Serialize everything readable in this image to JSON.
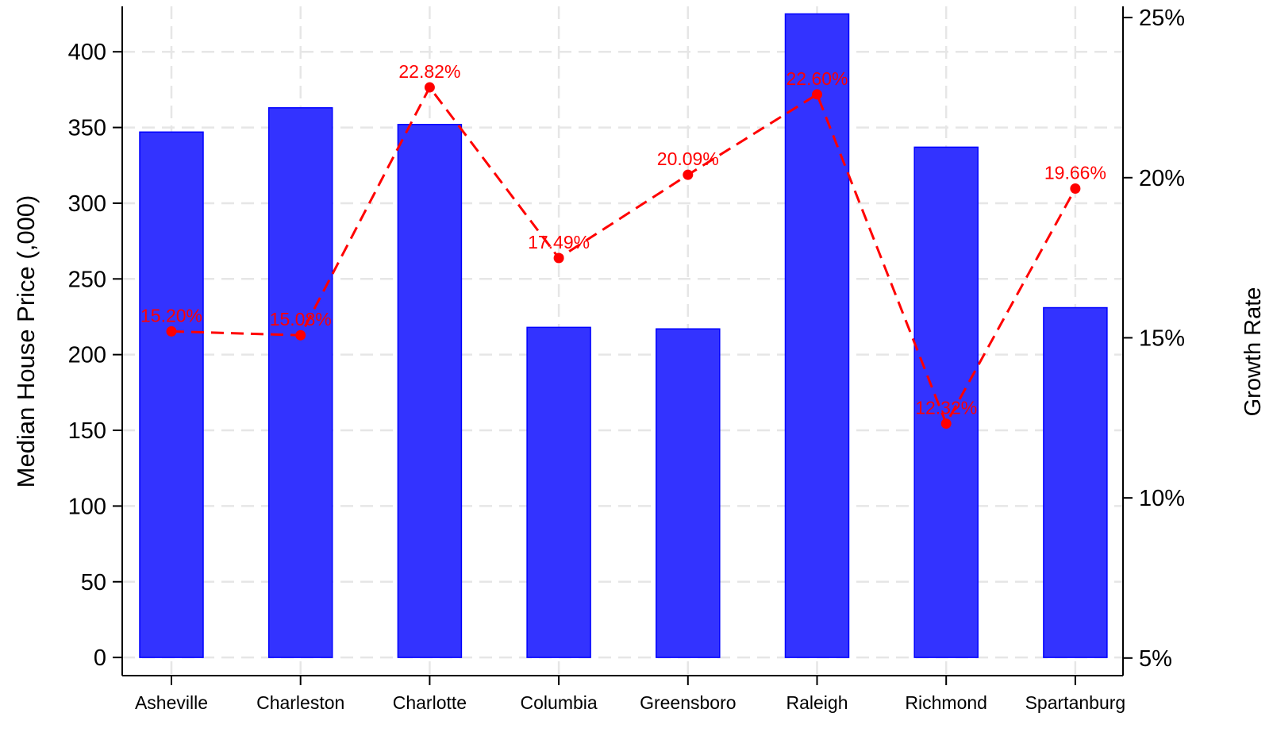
{
  "chart_data": {
    "type": "bar",
    "title": "",
    "categories": [
      "Asheville",
      "Charleston",
      "Charlotte",
      "Columbia",
      "Greensboro",
      "Raleigh",
      "Richmond",
      "Spartanburg"
    ],
    "series": [
      {
        "values": [
          347,
          363,
          352,
          218,
          217,
          425,
          337,
          231
        ],
        "type": "bar",
        "axis": "left",
        "color": "#3333ff",
        "edge_color": "#0000ff"
      },
      {
        "values": [
          15.2,
          15.08,
          22.82,
          17.49,
          20.09,
          22.6,
          12.32,
          19.66
        ],
        "labels": [
          "15.20%",
          "15.08%",
          "22.82%",
          "17.49%",
          "20.09%",
          "22.60%",
          "12.32%",
          "19.66%"
        ],
        "type": "line",
        "line_style": "dashed",
        "marker": "circle",
        "axis": "right",
        "color": "#ff0000"
      }
    ],
    "y_left": {
      "label": "Median House Price (,000)",
      "ylim": [
        -12,
        430
      ],
      "ticks": [
        0,
        50,
        100,
        150,
        200,
        250,
        300,
        350,
        400
      ],
      "tick_labels": [
        "0",
        "50",
        "100",
        "150",
        "200",
        "250",
        "300",
        "350",
        "400"
      ]
    },
    "y_right": {
      "label": "Growth Rate",
      "ylim": [
        4.45,
        25.35
      ],
      "ticks": [
        5,
        10,
        15,
        20,
        25
      ],
      "tick_labels": [
        "5%",
        "10%",
        "15%",
        "20%",
        "25%"
      ]
    },
    "xlabel": "",
    "grid": true,
    "grid_style": "dashed",
    "legend": "none"
  }
}
